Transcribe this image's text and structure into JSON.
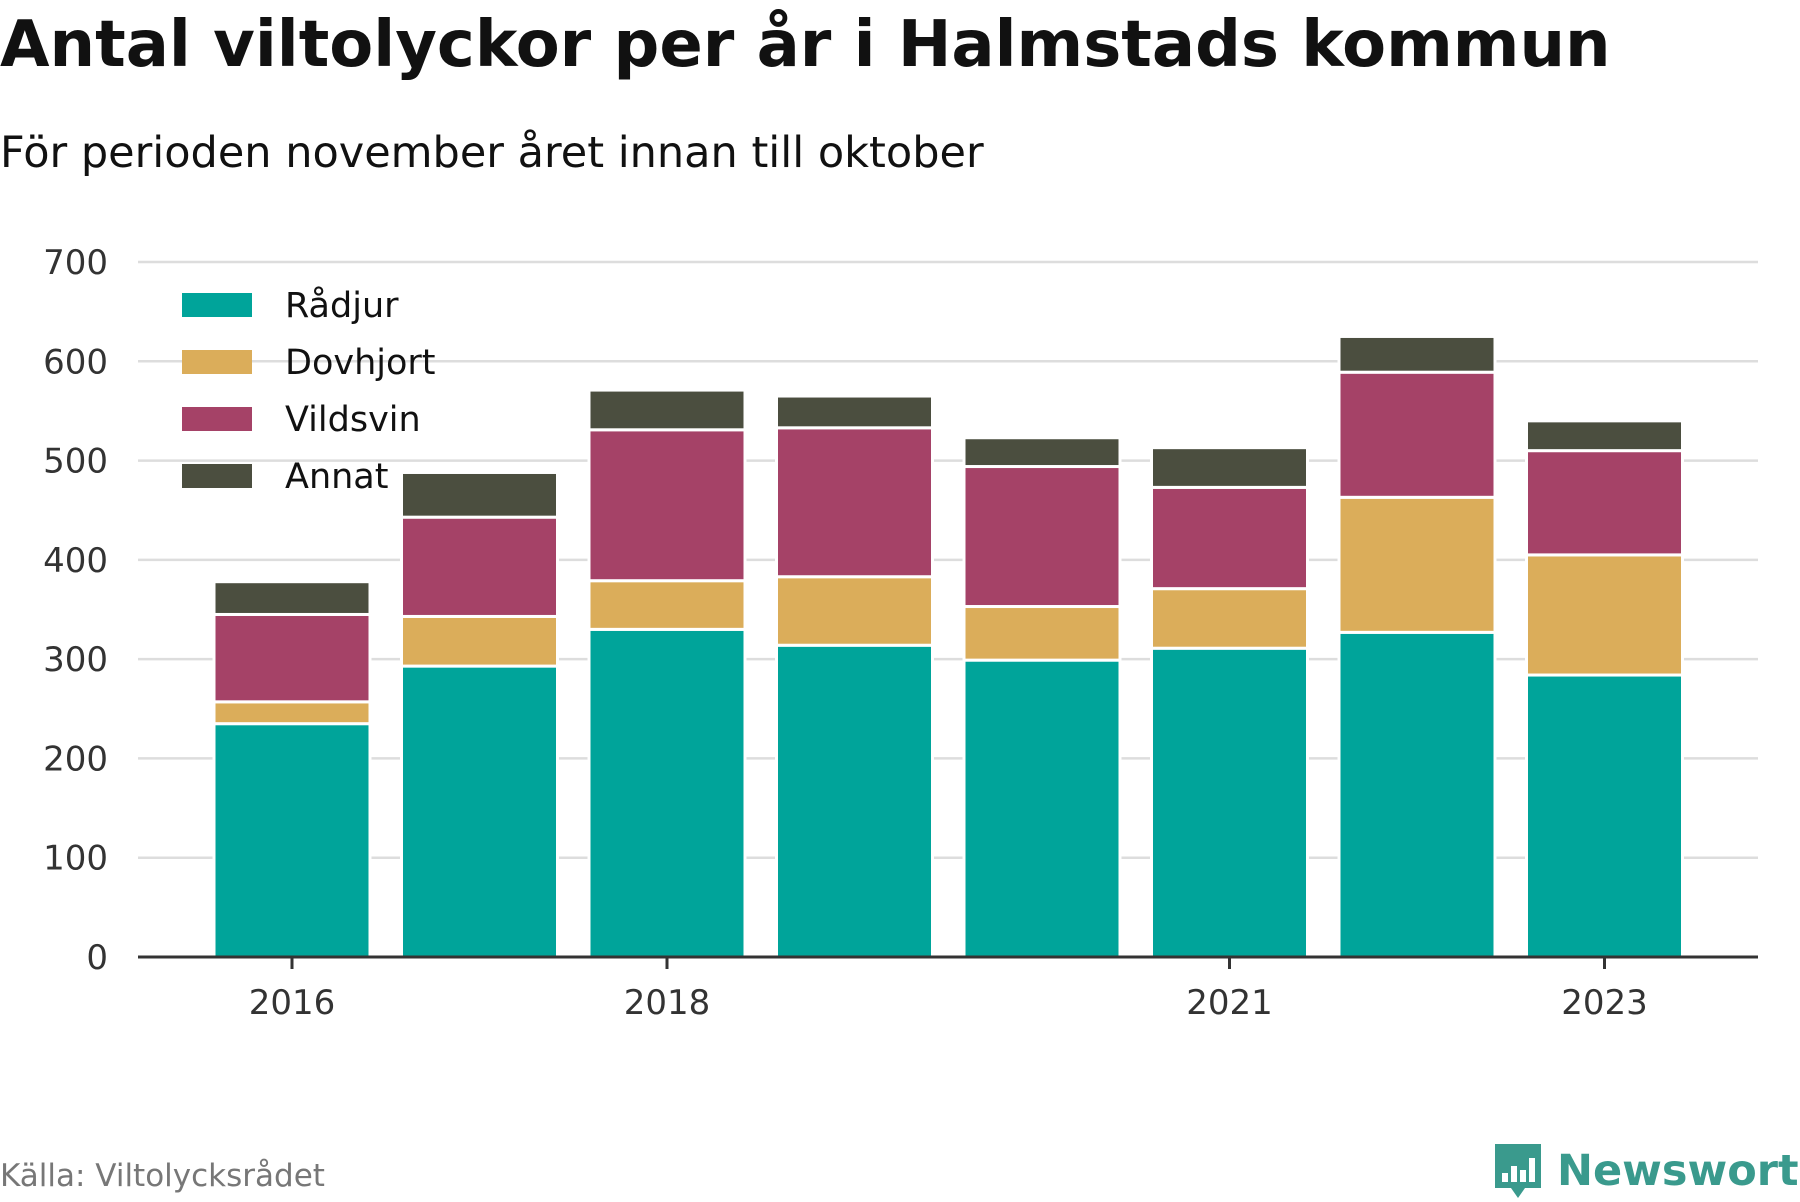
{
  "title": "Antal viltolyckor per år i Halmstads kommun",
  "subtitle": "För perioden november året innan till oktober",
  "source": "Källa: Viltolycksrådet",
  "brand": {
    "name": "Newsworthy",
    "icon": "newsworthy-logo-icon",
    "color": "#3a9a8d"
  },
  "chart_data": {
    "type": "bar",
    "stacked": true,
    "categories": [
      "2016",
      "2017",
      "2018",
      "2019",
      "2020",
      "2021",
      "2022",
      "2023"
    ],
    "x_tick_labels": [
      "2016",
      "2018",
      "2021",
      "2023"
    ],
    "series": [
      {
        "name": "Rådjur",
        "color": "#00a49a",
        "values": [
          235,
          293,
          330,
          314,
          299,
          311,
          327,
          284
        ]
      },
      {
        "name": "Dovhjort",
        "color": "#dbad5a",
        "values": [
          22,
          50,
          49,
          69,
          54,
          60,
          136,
          121
        ]
      },
      {
        "name": "Vildsvin",
        "color": "#a54267",
        "values": [
          88,
          100,
          152,
          150,
          141,
          102,
          126,
          105
        ]
      },
      {
        "name": "Annat",
        "color": "#4b4e3f",
        "values": [
          33,
          45,
          40,
          32,
          29,
          40,
          36,
          30
        ]
      }
    ],
    "yticks": [
      0,
      100,
      200,
      300,
      400,
      500,
      600,
      700
    ],
    "ylim": [
      0,
      700
    ],
    "xlabel": "",
    "ylabel": "",
    "grid": true,
    "legend_position": "top-left"
  }
}
